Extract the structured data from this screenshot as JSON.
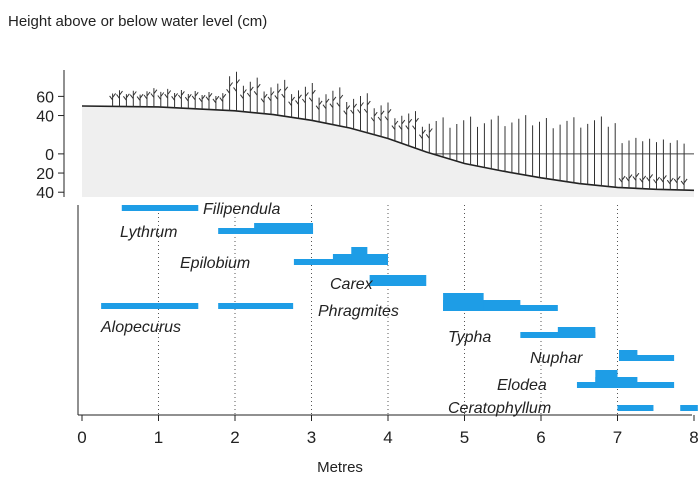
{
  "chart_data": {
    "type": "range-bar",
    "title": "Height above or below water level (cm)",
    "x_label": "Metres",
    "xlim": [
      0,
      8.1
    ],
    "xticks": [
      0,
      1,
      2,
      3,
      4,
      5,
      6,
      7,
      8
    ],
    "ylim": [
      -45,
      75
    ],
    "yticks": [
      60,
      40,
      0,
      {
        "value": -20,
        "label": "20"
      },
      {
        "value": -40,
        "label": "40"
      }
    ],
    "color": "#1e9de6",
    "grid": true,
    "profile": {
      "x": [
        0,
        1,
        2,
        2.5,
        3,
        3.5,
        4,
        4.5,
        5,
        5.5,
        6,
        6.5,
        7,
        7.5,
        8
      ],
      "y": [
        50,
        49,
        45,
        41,
        35,
        27,
        16,
        2,
        -10,
        -18,
        -25,
        -31,
        -35,
        -37,
        -38
      ]
    },
    "series": [
      {
        "name": "Filipendula",
        "segments": [
          {
            "from": 0.52,
            "to": 1.52,
            "depth": 1
          }
        ]
      },
      {
        "name": "Lythrum",
        "segments": [
          {
            "from": 1.78,
            "to": 3.02,
            "depth": 1
          },
          {
            "from": 2.25,
            "to": 3.02,
            "depth": 2
          }
        ]
      },
      {
        "name": "Epilobium",
        "segments": [
          {
            "from": 2.77,
            "to": 4.0,
            "depth": 1
          },
          {
            "from": 3.28,
            "to": 4.0,
            "depth": 2
          },
          {
            "from": 3.52,
            "to": 3.73,
            "depth": 3
          }
        ]
      },
      {
        "name": "Carex",
        "segments": [
          {
            "from": 3.76,
            "to": 4.5,
            "depth": 2
          }
        ]
      },
      {
        "name": "Phragmites",
        "segments": [
          {
            "from": 4.72,
            "to": 6.22,
            "depth": 1
          },
          {
            "from": 4.72,
            "to": 5.73,
            "depth": 2
          },
          {
            "from": 4.72,
            "to": 5.25,
            "depth": 3
          }
        ]
      },
      {
        "name": "Alopecurus",
        "segments": [
          {
            "from": 0.25,
            "to": 1.52,
            "depth": 1
          },
          {
            "from": 1.78,
            "to": 2.76,
            "depth": 1
          }
        ]
      },
      {
        "name": "Typha",
        "segments": [
          {
            "from": 5.73,
            "to": 6.71,
            "depth": 1
          },
          {
            "from": 6.22,
            "to": 6.71,
            "depth": 2
          }
        ]
      },
      {
        "name": "Nuphar",
        "segments": [
          {
            "from": 7.02,
            "to": 7.74,
            "depth": 1
          },
          {
            "from": 7.02,
            "to": 7.26,
            "depth": 2
          }
        ]
      },
      {
        "name": "Elodea",
        "segments": [
          {
            "from": 6.47,
            "to": 7.74,
            "depth": 1
          },
          {
            "from": 6.71,
            "to": 7.26,
            "depth": 2
          },
          {
            "from": 6.71,
            "to": 7.0,
            "depth": 3
          }
        ]
      },
      {
        "name": "Ceratophyllum",
        "segments": [
          {
            "from": 7.0,
            "to": 7.47,
            "depth": 1
          },
          {
            "from": 7.82,
            "to": 8.05,
            "depth": 1
          }
        ]
      }
    ]
  }
}
